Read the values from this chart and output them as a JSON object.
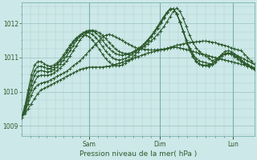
{
  "xlabel": "Pression niveau de la mer( hPa )",
  "bg_color": "#cde8e8",
  "grid_color": "#a8cccc",
  "line_color": "#2d5a2d",
  "yticks": [
    1009,
    1010,
    1011,
    1012
  ],
  "ylim": [
    1008.7,
    1012.6
  ],
  "xlim": [
    0,
    1
  ],
  "day_labels": [
    "Sam",
    "Dim",
    "Lun"
  ],
  "day_positions": [
    0.29,
    0.595,
    0.91
  ],
  "n_points": 73,
  "lines": [
    [
      1009.25,
      1009.35,
      1009.5,
      1009.65,
      1009.8,
      1009.95,
      1010.05,
      1010.1,
      1010.15,
      1010.2,
      1010.25,
      1010.3,
      1010.35,
      1010.4,
      1010.45,
      1010.5,
      1010.55,
      1010.6,
      1010.65,
      1010.68,
      1010.7,
      1010.72,
      1010.72,
      1010.72,
      1010.72,
      1010.72,
      1010.74,
      1010.75,
      1010.77,
      1010.8,
      1010.83,
      1010.86,
      1010.9,
      1010.93,
      1010.96,
      1011.0,
      1011.03,
      1011.06,
      1011.1,
      1011.13,
      1011.15,
      1011.18,
      1011.2,
      1011.22,
      1011.24,
      1011.26,
      1011.28,
      1011.3,
      1011.3,
      1011.28,
      1011.26,
      1011.24,
      1011.2,
      1011.18,
      1011.15,
      1011.12,
      1011.1,
      1011.08,
      1011.05,
      1011.02,
      1011.0,
      1010.98,
      1010.95,
      1010.93,
      1010.9,
      1010.88,
      1010.85,
      1010.83,
      1010.8,
      1010.78,
      1010.75,
      1010.72,
      1010.7
    ],
    [
      1009.25,
      1009.4,
      1009.65,
      1009.9,
      1010.1,
      1010.2,
      1010.25,
      1010.28,
      1010.3,
      1010.35,
      1010.4,
      1010.45,
      1010.5,
      1010.55,
      1010.6,
      1010.68,
      1010.76,
      1010.83,
      1010.9,
      1011.0,
      1011.1,
      1011.2,
      1011.3,
      1011.4,
      1011.5,
      1011.6,
      1011.65,
      1011.68,
      1011.65,
      1011.6,
      1011.55,
      1011.5,
      1011.45,
      1011.4,
      1011.35,
      1011.3,
      1011.27,
      1011.25,
      1011.24,
      1011.23,
      1011.22,
      1011.22,
      1011.23,
      1011.24,
      1011.25,
      1011.27,
      1011.3,
      1011.33,
      1011.36,
      1011.38,
      1011.4,
      1011.42,
      1011.44,
      1011.45,
      1011.46,
      1011.47,
      1011.48,
      1011.48,
      1011.47,
      1011.45,
      1011.43,
      1011.4,
      1011.38,
      1011.35,
      1011.32,
      1011.28,
      1011.25,
      1011.22,
      1011.2,
      1011.1,
      1011.0,
      1010.9,
      1010.8
    ],
    [
      1009.25,
      1009.45,
      1009.75,
      1010.05,
      1010.3,
      1010.45,
      1010.48,
      1010.48,
      1010.48,
      1010.5,
      1010.55,
      1010.62,
      1010.7,
      1010.8,
      1010.9,
      1011.05,
      1011.2,
      1011.35,
      1011.5,
      1011.62,
      1011.72,
      1011.78,
      1011.8,
      1011.78,
      1011.72,
      1011.65,
      1011.55,
      1011.45,
      1011.35,
      1011.25,
      1011.18,
      1011.14,
      1011.12,
      1011.12,
      1011.14,
      1011.18,
      1011.22,
      1011.27,
      1011.33,
      1011.4,
      1011.48,
      1011.57,
      1011.67,
      1011.78,
      1011.9,
      1012.05,
      1012.2,
      1012.35,
      1012.45,
      1012.35,
      1012.15,
      1011.9,
      1011.65,
      1011.45,
      1011.28,
      1011.18,
      1011.1,
      1011.05,
      1010.98,
      1010.9,
      1010.95,
      1011.0,
      1011.05,
      1011.1,
      1011.12,
      1011.12,
      1011.1,
      1011.05,
      1011.0,
      1010.95,
      1010.9,
      1010.85,
      1010.8
    ],
    [
      1009.25,
      1009.5,
      1009.85,
      1010.2,
      1010.48,
      1010.6,
      1010.62,
      1010.6,
      1010.58,
      1010.6,
      1010.65,
      1010.72,
      1010.82,
      1010.93,
      1011.05,
      1011.2,
      1011.35,
      1011.5,
      1011.62,
      1011.72,
      1011.78,
      1011.8,
      1011.78,
      1011.72,
      1011.62,
      1011.5,
      1011.38,
      1011.27,
      1011.18,
      1011.12,
      1011.08,
      1011.07,
      1011.08,
      1011.1,
      1011.14,
      1011.2,
      1011.26,
      1011.33,
      1011.41,
      1011.5,
      1011.6,
      1011.72,
      1011.85,
      1012.0,
      1012.15,
      1012.3,
      1012.42,
      1012.42,
      1012.28,
      1012.05,
      1011.78,
      1011.52,
      1011.28,
      1011.1,
      1010.98,
      1010.9,
      1010.87,
      1010.85,
      1010.82,
      1010.82,
      1010.9,
      1011.0,
      1011.08,
      1011.12,
      1011.13,
      1011.1,
      1011.05,
      1011.0,
      1010.92,
      1010.85,
      1010.8,
      1010.75,
      1010.7
    ],
    [
      1009.25,
      1009.55,
      1009.95,
      1010.35,
      1010.62,
      1010.73,
      1010.75,
      1010.72,
      1010.68,
      1010.68,
      1010.72,
      1010.8,
      1010.9,
      1011.02,
      1011.15,
      1011.3,
      1011.44,
      1011.56,
      1011.66,
      1011.72,
      1011.75,
      1011.73,
      1011.67,
      1011.58,
      1011.46,
      1011.32,
      1011.19,
      1011.08,
      1011.0,
      1010.95,
      1010.93,
      1010.94,
      1010.97,
      1011.02,
      1011.08,
      1011.15,
      1011.23,
      1011.31,
      1011.41,
      1011.52,
      1011.63,
      1011.76,
      1011.9,
      1012.05,
      1012.2,
      1012.33,
      1012.43,
      1012.42,
      1012.27,
      1012.03,
      1011.75,
      1011.47,
      1011.22,
      1011.02,
      1010.88,
      1010.8,
      1010.77,
      1010.77,
      1010.75,
      1010.78,
      1010.85,
      1010.95,
      1011.05,
      1011.12,
      1011.14,
      1011.1,
      1011.03,
      1010.95,
      1010.88,
      1010.8,
      1010.75,
      1010.7,
      1010.65
    ],
    [
      1009.25,
      1009.6,
      1010.05,
      1010.5,
      1010.78,
      1010.88,
      1010.88,
      1010.82,
      1010.76,
      1010.75,
      1010.78,
      1010.85,
      1010.95,
      1011.08,
      1011.22,
      1011.36,
      1011.48,
      1011.58,
      1011.64,
      1011.67,
      1011.65,
      1011.6,
      1011.5,
      1011.38,
      1011.24,
      1011.1,
      1010.97,
      1010.87,
      1010.8,
      1010.77,
      1010.76,
      1010.78,
      1010.83,
      1010.9,
      1010.98,
      1011.07,
      1011.16,
      1011.26,
      1011.36,
      1011.48,
      1011.6,
      1011.73,
      1011.87,
      1012.02,
      1012.17,
      1012.3,
      1012.4,
      1012.42,
      1012.28,
      1012.05,
      1011.78,
      1011.5,
      1011.25,
      1011.05,
      1010.9,
      1010.82,
      1010.78,
      1010.78,
      1010.78,
      1010.82,
      1010.9,
      1011.0,
      1011.1,
      1011.18,
      1011.2,
      1011.17,
      1011.1,
      1011.02,
      1010.93,
      1010.85,
      1010.78,
      1010.72,
      1010.68
    ]
  ]
}
